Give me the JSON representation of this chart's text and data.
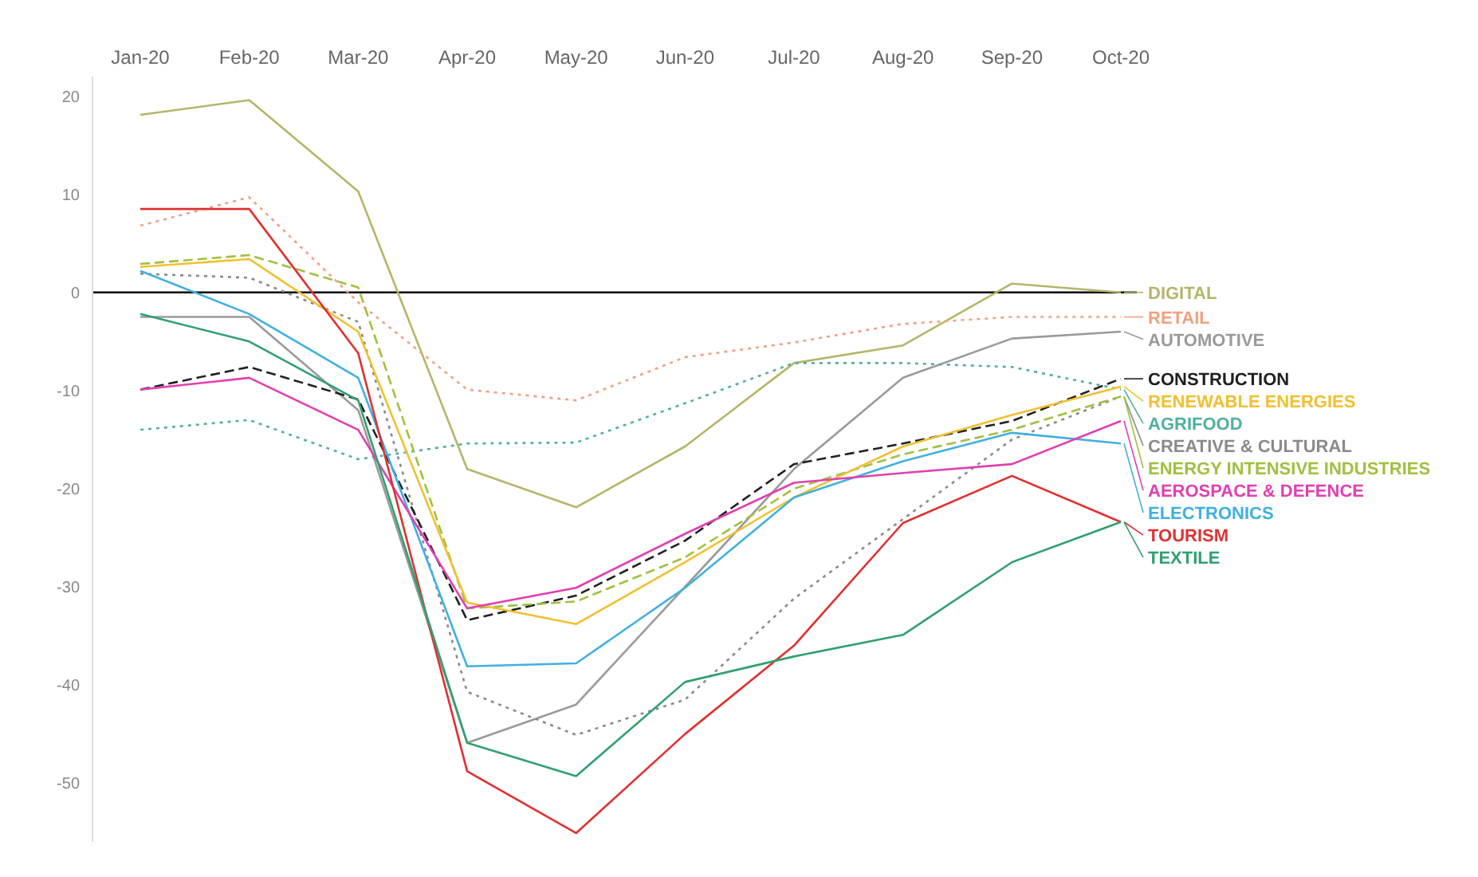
{
  "chart_data": {
    "type": "line",
    "categories": [
      "Jan-20",
      "Feb-20",
      "Mar-20",
      "Apr-20",
      "May-20",
      "Jun-20",
      "Jul-20",
      "Aug-20",
      "Sep-20",
      "Oct-20"
    ],
    "series": [
      {
        "name": "DIGITAL",
        "color": "#b5b56a",
        "values": [
          18.1,
          19.6,
          10.3,
          -18,
          -21.9,
          -15.7,
          -7.2,
          -5.4,
          0.9,
          0
        ]
      },
      {
        "name": "AUTOMOTIVE",
        "color": "#9a9a9a",
        "values": [
          -2.5,
          -2.5,
          -12,
          -45.9,
          -42,
          -30,
          -18,
          -8.7,
          -4.7,
          -4
        ]
      },
      {
        "name": "RETAIL",
        "color": "#f0a080",
        "line_style": "dotted",
        "values": [
          6.8,
          9.7,
          -1,
          -9.9,
          -11,
          -6.6,
          -5.1,
          -3.2,
          -2.5,
          -2.5
        ]
      },
      {
        "name": "AGRIFOOD",
        "color": "#50b0a0",
        "line_style": "dotted",
        "values": [
          -14,
          -13,
          -17,
          -15.4,
          -15.3,
          -11.3,
          -7.2,
          -7.2,
          -7.6,
          -9.9
        ]
      },
      {
        "name": "CREATIVE & CULTURAL",
        "color": "#8a8a8a",
        "line_style": "dotted",
        "values": [
          1.9,
          1.5,
          -3,
          -40.7,
          -45.1,
          -41.5,
          -31.2,
          -23.1,
          -15,
          -10.6
        ]
      },
      {
        "name": "CONSTRUCTION",
        "color": "#202020",
        "line_style": "dashed",
        "values": [
          -9.9,
          -7.6,
          -10.9,
          -33.4,
          -30.9,
          -25.3,
          -17.5,
          -15.4,
          -13.1,
          -8.8
        ]
      },
      {
        "name": "ENERGY INTENSIVE INDUSTRIES",
        "color": "#a0c040",
        "line_style": "dashed",
        "values": [
          2.9,
          3.8,
          0.5,
          -32.2,
          -31.5,
          -27,
          -20,
          -16.5,
          -14,
          -10.6
        ]
      },
      {
        "name": "RENEWABLE ENERGIES",
        "color": "#f0c030",
        "values": [
          2.6,
          3.4,
          -4,
          -31.6,
          -33.8,
          -27.5,
          -20.9,
          -15.7,
          -12.5,
          -9.6
        ]
      },
      {
        "name": "ELECTRONICS",
        "color": "#40b0e0",
        "values": [
          2.2,
          -2.2,
          -8.7,
          -38.1,
          -37.8,
          -30.1,
          -20.9,
          -17.2,
          -14.3,
          -15.4
        ]
      },
      {
        "name": "AEROSPACE & DEFENCE",
        "color": "#e040b0",
        "values": [
          -9.9,
          -8.7,
          -14,
          -32.2,
          -30.1,
          -24.6,
          -19.4,
          -18.4,
          -17.5,
          -13.1
        ]
      },
      {
        "name": "TOURISM",
        "color": "#e03030",
        "values": [
          8.5,
          8.5,
          -6.2,
          -48.8,
          -55.1,
          -45,
          -36,
          -23.5,
          -18.7,
          -23.4
        ]
      },
      {
        "name": "TEXTILE",
        "color": "#30a070",
        "values": [
          -2.2,
          -5,
          -11,
          -45.9,
          -49.3,
          -39.7,
          -37.1,
          -34.9,
          -27.5,
          -23.4
        ]
      }
    ],
    "ylim": [
      -56,
      22
    ],
    "yticks": [
      20,
      10,
      0,
      -10,
      -20,
      -30,
      -40,
      -50
    ],
    "grid": false,
    "legend": "right",
    "marker": "none",
    "ref_lines": [
      {
        "axis": "y",
        "value": 0,
        "color": "#000000"
      }
    ]
  }
}
